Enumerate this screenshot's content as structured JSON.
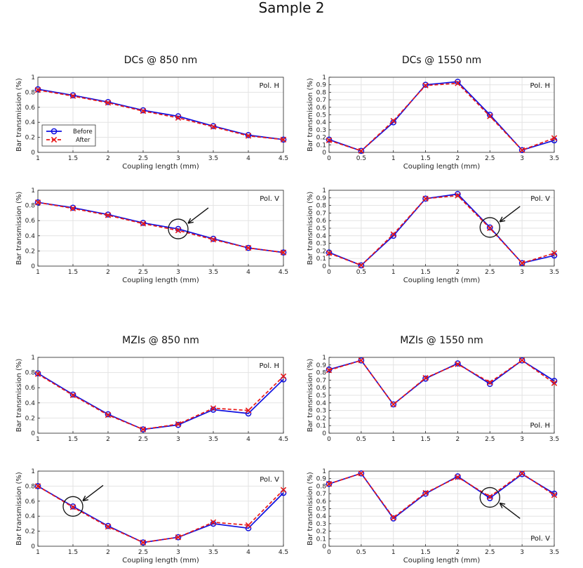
{
  "figure_title": "Sample 2",
  "legend": {
    "before": "Before",
    "after": "After"
  },
  "colors": {
    "before": "#1010e0",
    "after": "#e81818",
    "grid": "#e3e3e3",
    "axis": "#262626"
  },
  "chart_data": [
    {
      "type": "line",
      "title": "DCs @ 850 nm",
      "show_title": true,
      "xlabel": "Coupling length (mm)",
      "ylabel": "Bar transmission (%)",
      "xlim": [
        1,
        4.5
      ],
      "ylim": [
        0,
        1
      ],
      "xticks": [
        1,
        1.5,
        2,
        2.5,
        3,
        3.5,
        4,
        4.5
      ],
      "xtick_labels": [
        "1",
        "1.5",
        "2",
        "2.5",
        "3",
        "3.5",
        "4",
        "4.5"
      ],
      "yticks": [
        0,
        0.2,
        0.4,
        0.6,
        0.8,
        1
      ],
      "ytick_labels": [
        "0",
        "0.2",
        "0.4",
        "0.6",
        "0.8",
        "1"
      ],
      "annotation": "Pol. H",
      "annotation_pos": "top-right",
      "legend": "left",
      "x": [
        1,
        1.5,
        2,
        2.5,
        3,
        3.5,
        4,
        4.5
      ],
      "series": [
        {
          "name": "Before",
          "values": [
            0.84,
            0.76,
            0.67,
            0.56,
            0.48,
            0.35,
            0.23,
            0.17
          ]
        },
        {
          "name": "After",
          "values": [
            0.83,
            0.75,
            0.66,
            0.55,
            0.46,
            0.34,
            0.22,
            0.17
          ]
        }
      ]
    },
    {
      "type": "line",
      "title": "DCs @ 1550 nm",
      "show_title": true,
      "xlabel": "Coupling length (mm)",
      "ylabel": "Bar transmission (%)",
      "xlim": [
        0,
        3.5
      ],
      "ylim": [
        0,
        1
      ],
      "xticks": [
        0,
        0.5,
        1,
        1.5,
        2,
        2.5,
        3,
        3.5
      ],
      "xtick_labels": [
        "0",
        "0.5",
        "1",
        "1.5",
        "2",
        "2.5",
        "3",
        "3.5"
      ],
      "yticks": [
        0,
        0.1,
        0.2,
        0.3,
        0.4,
        0.5,
        0.6,
        0.7,
        0.8,
        0.9,
        1
      ],
      "ytick_labels": [
        "0",
        "0.1",
        "0.2",
        "0.3",
        "0.4",
        "0.5",
        "0.6",
        "0.7",
        "0.8",
        "0.9",
        "1"
      ],
      "annotation": "Pol. H",
      "annotation_pos": "top-right",
      "x": [
        0,
        0.5,
        1,
        1.5,
        2,
        2.5,
        3,
        3.5
      ],
      "series": [
        {
          "name": "Before",
          "values": [
            0.17,
            0.02,
            0.4,
            0.9,
            0.94,
            0.5,
            0.03,
            0.16
          ]
        },
        {
          "name": "After",
          "values": [
            0.16,
            0.02,
            0.42,
            0.89,
            0.92,
            0.48,
            0.03,
            0.19
          ]
        }
      ]
    },
    {
      "type": "line",
      "title": "",
      "show_title": false,
      "xlabel": "Coupling length (mm)",
      "ylabel": "Bar transmission (%)",
      "xlim": [
        1,
        4.5
      ],
      "ylim": [
        0,
        1
      ],
      "xticks": [
        1,
        1.5,
        2,
        2.5,
        3,
        3.5,
        4,
        4.5
      ],
      "xtick_labels": [
        "1",
        "1.5",
        "2",
        "2.5",
        "3",
        "3.5",
        "4",
        "4.5"
      ],
      "yticks": [
        0,
        0.2,
        0.4,
        0.6,
        0.8,
        1
      ],
      "ytick_labels": [
        "0",
        "0.2",
        "0.4",
        "0.6",
        "0.8",
        "1"
      ],
      "annotation": "Pol. V",
      "annotation_pos": "top-right",
      "highlight": {
        "x": 3,
        "y": 0.49,
        "arrow_from": "top-right"
      },
      "x": [
        1,
        1.5,
        2,
        2.5,
        3,
        3.5,
        4,
        4.5
      ],
      "series": [
        {
          "name": "Before",
          "values": [
            0.84,
            0.77,
            0.68,
            0.57,
            0.49,
            0.36,
            0.24,
            0.18
          ]
        },
        {
          "name": "After",
          "values": [
            0.84,
            0.76,
            0.67,
            0.56,
            0.47,
            0.35,
            0.24,
            0.18
          ]
        }
      ]
    },
    {
      "type": "line",
      "title": "",
      "show_title": false,
      "xlabel": "Coupling length (mm)",
      "ylabel": "Bar transmission (%)",
      "xlim": [
        0,
        3.5
      ],
      "ylim": [
        0,
        1
      ],
      "xticks": [
        0,
        0.5,
        1,
        1.5,
        2,
        2.5,
        3,
        3.5
      ],
      "xtick_labels": [
        "0",
        "0.5",
        "1",
        "1.5",
        "2",
        "2.5",
        "3",
        "3.5"
      ],
      "yticks": [
        0,
        0.1,
        0.2,
        0.3,
        0.4,
        0.5,
        0.6,
        0.7,
        0.8,
        0.9,
        1
      ],
      "ytick_labels": [
        "0",
        "0.1",
        "0.2",
        "0.3",
        "0.4",
        "0.5",
        "0.6",
        "0.7",
        "0.8",
        "0.9",
        "1"
      ],
      "annotation": "Pol. V",
      "annotation_pos": "top-right",
      "highlight": {
        "x": 2.5,
        "y": 0.51,
        "arrow_from": "top-right"
      },
      "x": [
        0,
        0.5,
        1,
        1.5,
        2,
        2.5,
        3,
        3.5
      ],
      "series": [
        {
          "name": "Before",
          "values": [
            0.18,
            0.01,
            0.4,
            0.89,
            0.95,
            0.51,
            0.04,
            0.14
          ]
        },
        {
          "name": "After",
          "values": [
            0.17,
            0.01,
            0.42,
            0.89,
            0.93,
            0.5,
            0.04,
            0.17
          ]
        }
      ]
    },
    {
      "type": "line",
      "title": "MZIs @ 850 nm",
      "show_title": true,
      "xlabel": "",
      "ylabel": "Bar transmission (%)",
      "xlim": [
        1,
        4.5
      ],
      "ylim": [
        0,
        1
      ],
      "xticks": [
        1,
        1.5,
        2,
        2.5,
        3,
        3.5,
        4,
        4.5
      ],
      "xtick_labels": [
        "1",
        "1.5",
        "2",
        "2.5",
        "3",
        "3.5",
        "4",
        "4.5"
      ],
      "yticks": [
        0,
        0.2,
        0.4,
        0.6,
        0.8,
        1
      ],
      "ytick_labels": [
        "0",
        "0.2",
        "0.4",
        "0.6",
        "0.8",
        "1"
      ],
      "annotation": "Pol. H",
      "annotation_pos": "top-right",
      "x": [
        1,
        1.5,
        2,
        2.5,
        3,
        3.5,
        4,
        4.5
      ],
      "series": [
        {
          "name": "Before",
          "values": [
            0.79,
            0.51,
            0.25,
            0.05,
            0.11,
            0.31,
            0.26,
            0.71
          ]
        },
        {
          "name": "After",
          "values": [
            0.78,
            0.5,
            0.24,
            0.05,
            0.12,
            0.33,
            0.3,
            0.75
          ]
        }
      ]
    },
    {
      "type": "line",
      "title": "MZIs @ 1550 nm",
      "show_title": true,
      "xlabel": "",
      "ylabel": "Bar transmission (%)",
      "xlim": [
        0,
        3.5
      ],
      "ylim": [
        0,
        1
      ],
      "xticks": [
        0,
        0.5,
        1,
        1.5,
        2,
        2.5,
        3,
        3.5
      ],
      "xtick_labels": [
        "0",
        "0.5",
        "1",
        "1.5",
        "2",
        "2.5",
        "3",
        "3.5"
      ],
      "yticks": [
        0,
        0.1,
        0.2,
        0.3,
        0.4,
        0.5,
        0.6,
        0.7,
        0.8,
        0.9,
        1
      ],
      "ytick_labels": [
        "0",
        "0.1",
        "0.2",
        "0.3",
        "0.4",
        "0.5",
        "0.6",
        "0.7",
        "0.8",
        "0.9",
        "1"
      ],
      "annotation": "Pol. H",
      "annotation_pos": "bottom-right",
      "x": [
        0,
        0.5,
        1,
        1.5,
        2,
        2.5,
        3,
        3.5
      ],
      "series": [
        {
          "name": "Before",
          "values": [
            0.84,
            0.96,
            0.38,
            0.72,
            0.92,
            0.65,
            0.96,
            0.69
          ]
        },
        {
          "name": "After",
          "values": [
            0.83,
            0.96,
            0.38,
            0.73,
            0.91,
            0.67,
            0.96,
            0.66
          ]
        }
      ]
    },
    {
      "type": "line",
      "title": "",
      "show_title": false,
      "xlabel": "Coupling length (mm)",
      "ylabel": "Bar transmission (%)",
      "xlim": [
        1,
        4.5
      ],
      "ylim": [
        0,
        1
      ],
      "xticks": [
        1,
        1.5,
        2,
        2.5,
        3,
        3.5,
        4,
        4.5
      ],
      "xtick_labels": [
        "1",
        "1.5",
        "2",
        "2.5",
        "3",
        "3.5",
        "4",
        "4.5"
      ],
      "yticks": [
        0,
        0.2,
        0.4,
        0.6,
        0.8,
        1
      ],
      "ytick_labels": [
        "0",
        "0.2",
        "0.4",
        "0.6",
        "0.8",
        "1"
      ],
      "annotation": "Pol. V",
      "annotation_pos": "top-right",
      "highlight": {
        "x": 1.5,
        "y": 0.53,
        "arrow_from": "top-right"
      },
      "x": [
        1,
        1.5,
        2,
        2.5,
        3,
        3.5,
        4,
        4.5
      ],
      "series": [
        {
          "name": "Before",
          "values": [
            0.8,
            0.53,
            0.27,
            0.05,
            0.12,
            0.3,
            0.24,
            0.71
          ]
        },
        {
          "name": "After",
          "values": [
            0.8,
            0.52,
            0.26,
            0.05,
            0.12,
            0.32,
            0.28,
            0.75
          ]
        }
      ]
    },
    {
      "type": "line",
      "title": "",
      "show_title": false,
      "xlabel": "Coupling length (mm)",
      "ylabel": "Bar transmission (%)",
      "xlim": [
        0,
        3.5
      ],
      "ylim": [
        0,
        1
      ],
      "xticks": [
        0,
        0.5,
        1,
        1.5,
        2,
        2.5,
        3,
        3.5
      ],
      "xtick_labels": [
        "0",
        "0.5",
        "1",
        "1.5",
        "2",
        "2.5",
        "3",
        "3.5"
      ],
      "yticks": [
        0,
        0.1,
        0.2,
        0.3,
        0.4,
        0.5,
        0.6,
        0.7,
        0.8,
        0.9,
        1
      ],
      "ytick_labels": [
        "0",
        "0.1",
        "0.2",
        "0.3",
        "0.4",
        "0.5",
        "0.6",
        "0.7",
        "0.8",
        "0.9",
        "1"
      ],
      "annotation": "Pol. V",
      "annotation_pos": "bottom-right",
      "highlight": {
        "x": 2.5,
        "y": 0.65,
        "arrow_from": "bottom-right"
      },
      "x": [
        0,
        0.5,
        1,
        1.5,
        2,
        2.5,
        3,
        3.5
      ],
      "series": [
        {
          "name": "Before",
          "values": [
            0.83,
            0.97,
            0.37,
            0.7,
            0.93,
            0.64,
            0.96,
            0.7
          ]
        },
        {
          "name": "After",
          "values": [
            0.83,
            0.97,
            0.38,
            0.71,
            0.92,
            0.66,
            0.97,
            0.68
          ]
        }
      ]
    }
  ]
}
